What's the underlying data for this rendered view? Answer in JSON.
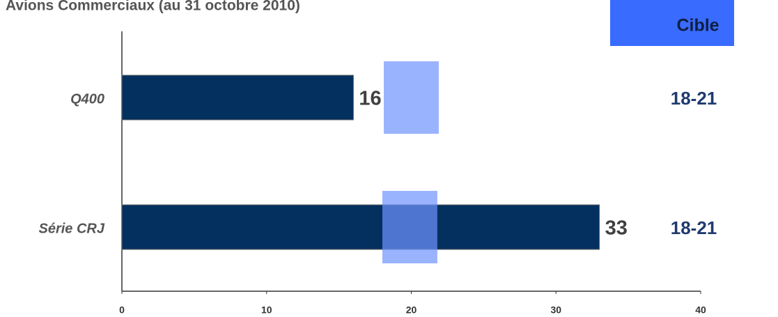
{
  "chart_data": {
    "type": "bar",
    "orientation": "horizontal",
    "title": "Avions Commerciaux (au 31 octobre 2010)",
    "categories": [
      "Q400",
      "Série CRJ"
    ],
    "values": [
      16,
      33
    ],
    "color": "#03305f",
    "target_header": "Cible",
    "target_labels": [
      "18-21",
      "18-21"
    ],
    "target_low": [
      18.1,
      18.0
    ],
    "target_high": [
      21.9,
      21.8
    ],
    "target_color": "#6f93ff",
    "xlim": [
      0,
      40
    ],
    "xticks": [
      0,
      10,
      20,
      30,
      40
    ],
    "grid": false
  }
}
